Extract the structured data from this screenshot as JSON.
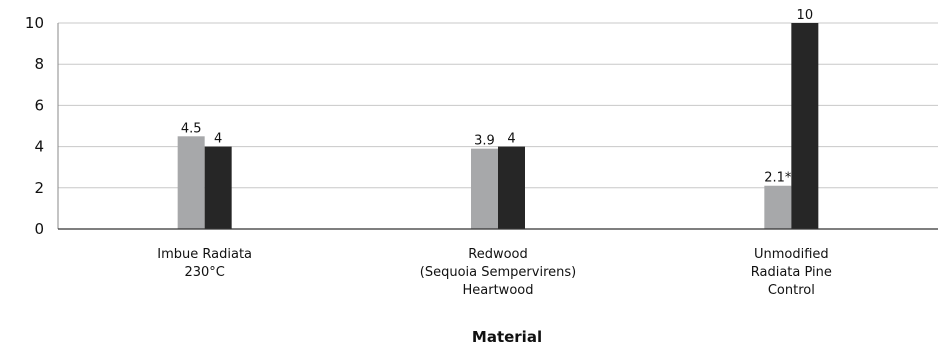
{
  "chart_data": {
    "type": "bar",
    "xlabel": "Material",
    "ylabel": "",
    "ylim": [
      0,
      10
    ],
    "yticks": [
      0,
      2,
      4,
      6,
      8,
      10
    ],
    "grid": true,
    "legend": "none",
    "categories": [
      [
        "Imbue Radiata",
        "230°C"
      ],
      [
        "Redwood",
        "(Sequoia Sempervirens)",
        "Heartwood"
      ],
      [
        "Unmodified",
        "Radiata Pine",
        "Control"
      ]
    ],
    "series": [
      {
        "color": "#a7a8aa",
        "values": [
          4.5,
          3.9,
          2.1
        ],
        "labels": [
          "4.5",
          "3.9",
          "2.1*"
        ]
      },
      {
        "color": "#262626",
        "values": [
          4,
          4,
          10
        ],
        "labels": [
          "4",
          "4",
          "10"
        ]
      }
    ]
  }
}
